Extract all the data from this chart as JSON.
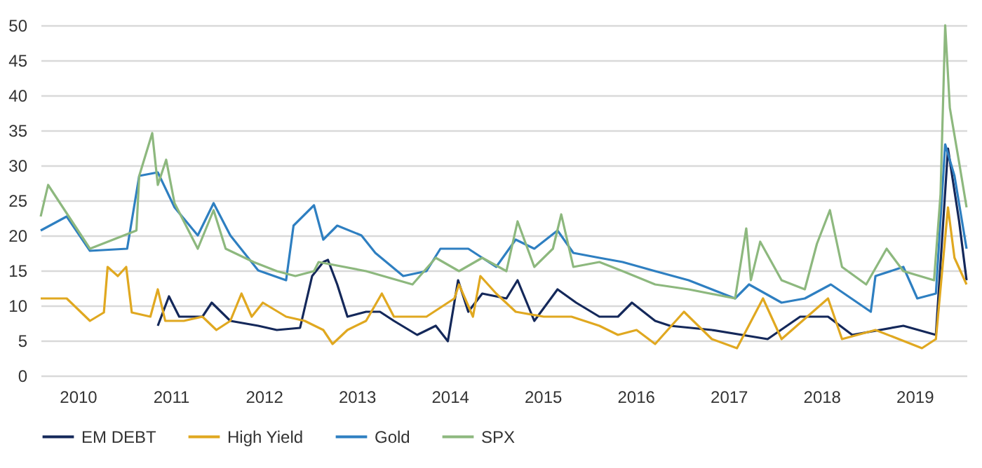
{
  "chart_data": {
    "type": "line",
    "xlim": [
      2009.6,
      2019.56
    ],
    "xticks": [
      2010,
      2011,
      2012,
      2013,
      2014,
      2015,
      2016,
      2017,
      2018,
      2019
    ],
    "ylim": [
      0,
      50
    ],
    "yticks": [
      0,
      5,
      10,
      15,
      20,
      25,
      30,
      35,
      40,
      45,
      50
    ],
    "grid": "y",
    "legend": "bottom",
    "marker": "none",
    "line_style": "solid",
    "series": [
      {
        "name": "EM DEBT",
        "color": "#14285a",
        "x": [
          2010.86,
          2010.98,
          2011.09,
          2011.34,
          2011.44,
          2011.64,
          2011.94,
          2012.14,
          2012.39,
          2012.52,
          2012.64,
          2012.69,
          2012.79,
          2012.9,
          2013.1,
          2013.25,
          2013.4,
          2013.65,
          2013.85,
          2013.98,
          2014.09,
          2014.2,
          2014.35,
          2014.61,
          2014.73,
          2014.91,
          2015.16,
          2015.36,
          2015.61,
          2015.81,
          2015.96,
          2016.21,
          2016.37,
          2016.82,
          2017.42,
          2017.77,
          2018.07,
          2018.33,
          2018.88,
          2019.23,
          2019.36,
          2019.48,
          2019.56
        ],
        "values": [
          7.1,
          11.3,
          8.4,
          8.4,
          10.4,
          7.8,
          7.1,
          6.5,
          6.8,
          14.2,
          16.2,
          16.5,
          13,
          8.4,
          9.1,
          9.1,
          7.8,
          5.8,
          7.1,
          4.9,
          13.6,
          9.1,
          11.7,
          11,
          13.6,
          7.8,
          12.3,
          10.4,
          8.4,
          8.4,
          10.4,
          7.8,
          7.1,
          6.5,
          5.2,
          8.4,
          8.4,
          5.8,
          7.1,
          5.8,
          32.4,
          22,
          13.6
        ]
      },
      {
        "name": "High Yield",
        "color": "#e0a820",
        "x": [
          2009.6,
          2009.88,
          2010.13,
          2010.28,
          2010.32,
          2010.43,
          2010.52,
          2010.58,
          2010.78,
          2010.86,
          2010.94,
          2011.14,
          2011.34,
          2011.49,
          2011.64,
          2011.76,
          2011.87,
          2011.99,
          2012.24,
          2012.44,
          2012.64,
          2012.74,
          2012.9,
          2013.1,
          2013.27,
          2013.4,
          2013.75,
          2014.05,
          2014.1,
          2014.25,
          2014.33,
          2014.5,
          2014.71,
          2015.01,
          2015.31,
          2015.61,
          2015.81,
          2016.01,
          2016.21,
          2016.52,
          2016.82,
          2017.09,
          2017.37,
          2017.57,
          2018.07,
          2018.22,
          2018.58,
          2019.08,
          2019.23,
          2019.36,
          2019.43,
          2019.56
        ],
        "values": [
          11,
          11,
          7.8,
          9,
          15.5,
          14.2,
          15.5,
          9,
          8.4,
          12.3,
          7.8,
          7.8,
          8.4,
          6.5,
          7.8,
          11.7,
          8.4,
          10.4,
          8.4,
          7.8,
          6.5,
          4.5,
          6.5,
          7.8,
          11.7,
          8.4,
          8.4,
          11,
          13,
          8.4,
          14.2,
          11.7,
          9.1,
          8.4,
          8.4,
          7.1,
          5.8,
          6.5,
          4.5,
          9.1,
          5.2,
          3.9,
          11,
          5.2,
          11,
          5.2,
          6.5,
          3.9,
          5.2,
          24,
          16.8,
          13
        ]
      },
      {
        "name": "Gold",
        "color": "#2e7fc1",
        "x": [
          2009.6,
          2009.88,
          2010.13,
          2010.53,
          2010.66,
          2010.86,
          2011.04,
          2011.29,
          2011.46,
          2011.64,
          2011.94,
          2012.24,
          2012.32,
          2012.54,
          2012.64,
          2012.79,
          2013.05,
          2013.2,
          2013.5,
          2013.75,
          2013.9,
          2014.2,
          2014.5,
          2014.71,
          2014.91,
          2015.16,
          2015.33,
          2015.61,
          2015.86,
          2016.21,
          2016.57,
          2017.07,
          2017.22,
          2017.57,
          2017.82,
          2018.1,
          2018.53,
          2018.58,
          2018.88,
          2019.03,
          2019.23,
          2019.33,
          2019.43,
          2019.56
        ],
        "values": [
          20.7,
          22.7,
          17.8,
          18.1,
          28.5,
          29,
          24,
          20,
          24.6,
          20,
          15,
          13.6,
          21.4,
          24.3,
          19.4,
          21.4,
          20,
          17.5,
          14.2,
          14.9,
          18.1,
          18.1,
          15.5,
          19.4,
          18.1,
          20.7,
          17.5,
          16.8,
          16.2,
          14.9,
          13.6,
          11,
          13,
          10.4,
          11,
          13,
          9.1,
          14.2,
          15.5,
          11,
          11.7,
          33,
          28.5,
          18.1
        ]
      },
      {
        "name": "SPX",
        "color": "#8db87e",
        "x": [
          2009.6,
          2009.68,
          2010.13,
          2010.63,
          2010.66,
          2010.8,
          2010.86,
          2010.95,
          2011.04,
          2011.29,
          2011.46,
          2011.59,
          2011.89,
          2012.14,
          2012.34,
          2012.54,
          2012.59,
          2013.1,
          2013.6,
          2013.85,
          2014.1,
          2014.35,
          2014.61,
          2014.73,
          2014.91,
          2015.11,
          2015.2,
          2015.33,
          2015.61,
          2015.86,
          2016.21,
          2016.57,
          2017.07,
          2017.19,
          2017.24,
          2017.34,
          2017.57,
          2017.82,
          2017.95,
          2018.09,
          2018.22,
          2018.48,
          2018.7,
          2018.88,
          2019.21,
          2019.28,
          2019.33,
          2019.38,
          2019.48,
          2019.56
        ],
        "values": [
          22.7,
          27.2,
          18.1,
          20.7,
          28.5,
          34.6,
          27.2,
          30.8,
          24.6,
          18.1,
          23.6,
          18.1,
          16.2,
          14.9,
          14.2,
          14.9,
          16.2,
          14.9,
          13,
          16.8,
          14.9,
          16.8,
          14.9,
          22,
          15.5,
          18.1,
          23,
          15.5,
          16.2,
          14.9,
          13,
          12.3,
          11,
          21,
          13.6,
          19.1,
          13.6,
          12.3,
          18.8,
          23.6,
          15.5,
          13,
          18.1,
          14.9,
          13.6,
          25.9,
          50,
          38.2,
          30.4,
          24
        ]
      }
    ]
  }
}
